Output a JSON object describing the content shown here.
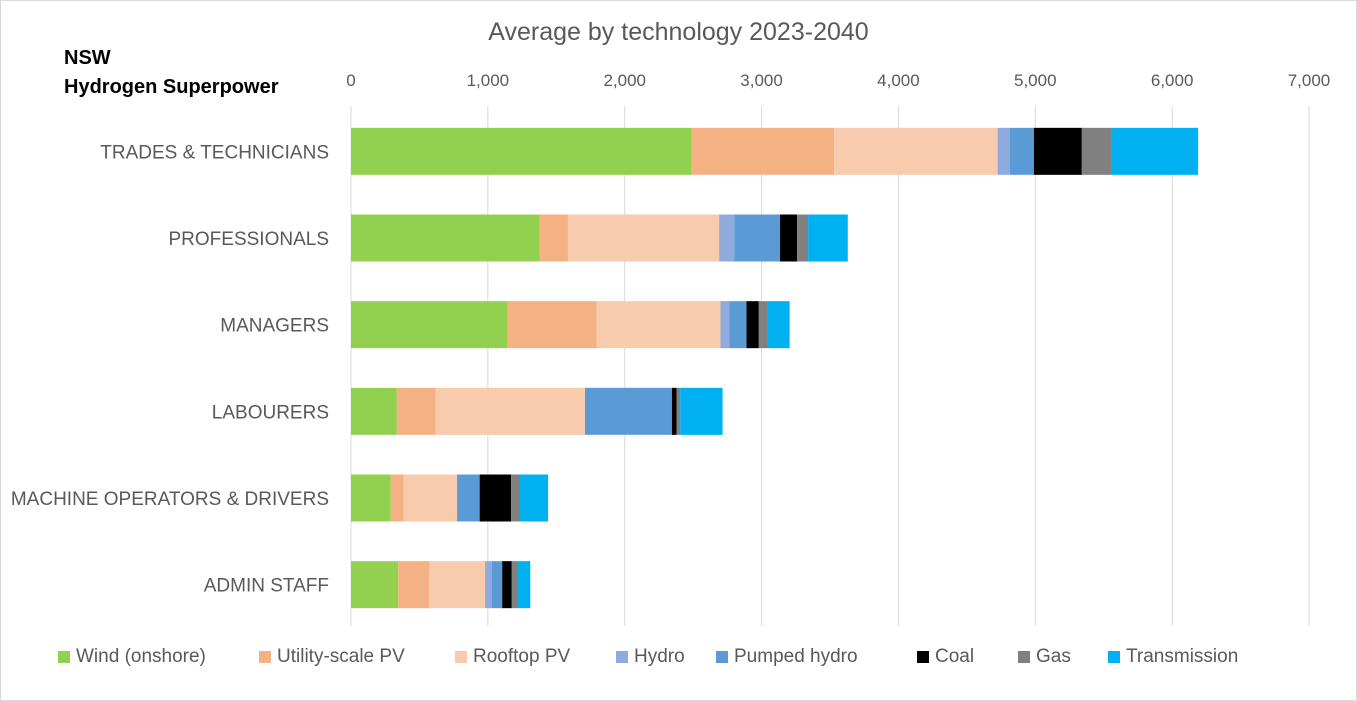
{
  "header": {
    "region": "NSW",
    "scenario": "Hydrogen Superpower"
  },
  "chart_data": {
    "type": "bar",
    "orientation": "horizontal",
    "stacked": true,
    "title": "Average by technology 2023-2040",
    "xlabel": "",
    "ylabel": "",
    "xlim": [
      0,
      7000
    ],
    "x_ticks": [
      "0",
      "1,000",
      "2,000",
      "3,000",
      "4,000",
      "5,000",
      "6,000",
      "7,000"
    ],
    "x_tick_values": [
      0,
      1000,
      2000,
      3000,
      4000,
      5000,
      6000,
      7000
    ],
    "x_axis_position": "top",
    "grid": true,
    "legend_position": "bottom",
    "categories": [
      "TRADES & TECHNICIANS",
      "PROFESSIONALS",
      "MANAGERS",
      "LABOURERS",
      "MACHINE OPERATORS & DRIVERS",
      "ADMIN STAFF"
    ],
    "series": [
      {
        "name": "Wind (onshore)",
        "color": "#92d050",
        "values": [
          2490,
          1380,
          1145,
          335,
          290,
          345
        ]
      },
      {
        "name": "Utility-scale PV",
        "color": "#f4b183",
        "values": [
          1040,
          205,
          650,
          285,
          95,
          225
        ]
      },
      {
        "name": "Rooftop PV",
        "color": "#f8cbad",
        "values": [
          1195,
          1105,
          905,
          1090,
          390,
          410
        ]
      },
      {
        "name": "Hydro",
        "color": "#8faadc",
        "values": [
          90,
          110,
          65,
          0,
          0,
          50
        ]
      },
      {
        "name": "Pumped hydro",
        "color": "#5b9bd5",
        "values": [
          175,
          335,
          125,
          635,
          165,
          75
        ]
      },
      {
        "name": "Coal",
        "color": "#000000",
        "values": [
          350,
          125,
          90,
          35,
          230,
          70
        ]
      },
      {
        "name": "Gas",
        "color": "#808080",
        "values": [
          220,
          80,
          60,
          25,
          65,
          45
        ]
      },
      {
        "name": "Transmission",
        "color": "#00b0f0",
        "values": [
          630,
          290,
          165,
          310,
          205,
          90
        ]
      }
    ]
  }
}
